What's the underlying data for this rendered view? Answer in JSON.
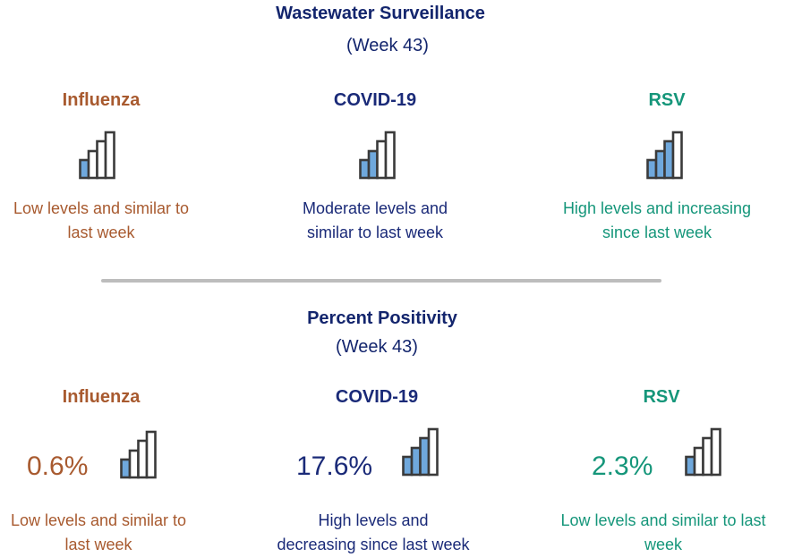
{
  "wastewater": {
    "title": "Wastewater Surveillance",
    "week": "(Week 43)",
    "items": [
      {
        "name": "Influenza",
        "level": 1,
        "desc_line1": "Low levels and similar to",
        "desc_line2": "last week",
        "color": "#a85a2f"
      },
      {
        "name": "COVID-19",
        "level": 2,
        "desc_line1": "Moderate levels and",
        "desc_line2": "similar to last week",
        "color": "#1a2a78"
      },
      {
        "name": "RSV",
        "level": 3,
        "desc_line1": "High levels and increasing",
        "desc_line2": "since last week",
        "color": "#15967a"
      }
    ]
  },
  "positivity": {
    "title": "Percent Positivity",
    "week": "(Week 43)",
    "items": [
      {
        "name": "Influenza",
        "value": "0.6%",
        "level": 1,
        "desc_line1": "Low levels and similar to",
        "desc_line2": "last week",
        "color": "#a85a2f"
      },
      {
        "name": "COVID-19",
        "value": "17.6%",
        "level": 3,
        "desc_line1": "High levels and",
        "desc_line2": "decreasing since last week",
        "color": "#1a2a78"
      },
      {
        "name": "RSV",
        "value": "2.3%",
        "level": 1,
        "desc_line1": "Low levels and similar to last",
        "desc_line2": "week",
        "color": "#15967a"
      }
    ]
  },
  "colors": {
    "bar_fill": "#6fa8dc",
    "bar_outline": "#3a3a3a",
    "divider": "#bdbdbd"
  }
}
